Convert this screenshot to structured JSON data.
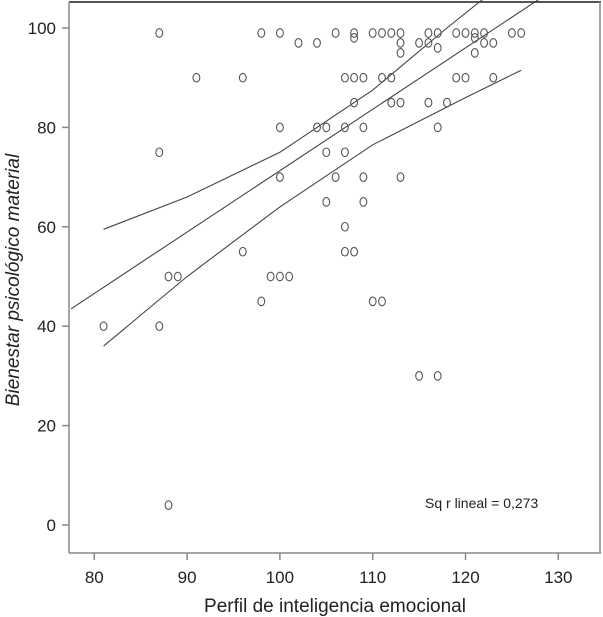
{
  "chart_data": {
    "type": "scatter",
    "title": "",
    "xlabel": "Perfil de inteligencia emocional",
    "ylabel": "Bienestar psicológico material",
    "xlim": [
      77.5,
      132.5
    ],
    "ylim": [
      -5.5,
      105
    ],
    "xticks": [
      80,
      90,
      100,
      110,
      120,
      130
    ],
    "yticks": [
      0,
      20,
      40,
      60,
      80,
      100
    ],
    "xtick_labels": [
      "80",
      "90",
      "100",
      "110",
      "120",
      "130"
    ],
    "ytick_labels": [
      "0",
      "20",
      "40",
      "60",
      "80",
      "100"
    ],
    "grid": false,
    "marker": "open-circle",
    "annotation": "Sq r lineal = 0,273",
    "points": [
      [
        87,
        99
      ],
      [
        98,
        99
      ],
      [
        100,
        99
      ],
      [
        106,
        99
      ],
      [
        108,
        99
      ],
      [
        108,
        98
      ],
      [
        110,
        99
      ],
      [
        111,
        99
      ],
      [
        112,
        99
      ],
      [
        113,
        99
      ],
      [
        116,
        99
      ],
      [
        117,
        99
      ],
      [
        119,
        99
      ],
      [
        120,
        99
      ],
      [
        121,
        99
      ],
      [
        121,
        98
      ],
      [
        122,
        99
      ],
      [
        125,
        99
      ],
      [
        126,
        99
      ],
      [
        102,
        97
      ],
      [
        104,
        97
      ],
      [
        113,
        97
      ],
      [
        115,
        97
      ],
      [
        116,
        97
      ],
      [
        121,
        95
      ],
      [
        122,
        97
      ],
      [
        123,
        97
      ],
      [
        113,
        95
      ],
      [
        117,
        96
      ],
      [
        91,
        90
      ],
      [
        96,
        90
      ],
      [
        107,
        90
      ],
      [
        108,
        90
      ],
      [
        109,
        90
      ],
      [
        111,
        90
      ],
      [
        112,
        90
      ],
      [
        119,
        90
      ],
      [
        120,
        90
      ],
      [
        123,
        90
      ],
      [
        108,
        85
      ],
      [
        112,
        85
      ],
      [
        113,
        85
      ],
      [
        116,
        85
      ],
      [
        118,
        85
      ],
      [
        100,
        80
      ],
      [
        104,
        80
      ],
      [
        105,
        80
      ],
      [
        107,
        80
      ],
      [
        109,
        80
      ],
      [
        117,
        80
      ],
      [
        87,
        75
      ],
      [
        105,
        75
      ],
      [
        107,
        75
      ],
      [
        100,
        70
      ],
      [
        106,
        70
      ],
      [
        109,
        70
      ],
      [
        113,
        70
      ],
      [
        105,
        65
      ],
      [
        109,
        65
      ],
      [
        107,
        60
      ],
      [
        96,
        55
      ],
      [
        107,
        55
      ],
      [
        108,
        55
      ],
      [
        88,
        50
      ],
      [
        89,
        50
      ],
      [
        99,
        50
      ],
      [
        100,
        50
      ],
      [
        101,
        50
      ],
      [
        98,
        45
      ],
      [
        110,
        45
      ],
      [
        111,
        45
      ],
      [
        81,
        40
      ],
      [
        87,
        40
      ],
      [
        115,
        30
      ],
      [
        117,
        30
      ],
      [
        88,
        4
      ]
    ],
    "fit_line": {
      "x": [
        77.5,
        128.5
      ],
      "y": [
        43.5,
        106.5
      ]
    },
    "ci_upper": {
      "x": [
        81,
        90,
        100,
        110,
        118,
        122
      ],
      "y": [
        59.5,
        66,
        75,
        87.5,
        100,
        106
      ]
    },
    "ci_lower": {
      "x": [
        81,
        90,
        100,
        110,
        120,
        126
      ],
      "y": [
        36,
        50,
        64,
        76.5,
        86,
        91.5
      ]
    }
  },
  "colors": {
    "axis": "#888888",
    "marker": "#555555",
    "line": "#444444",
    "text": "#222222"
  }
}
